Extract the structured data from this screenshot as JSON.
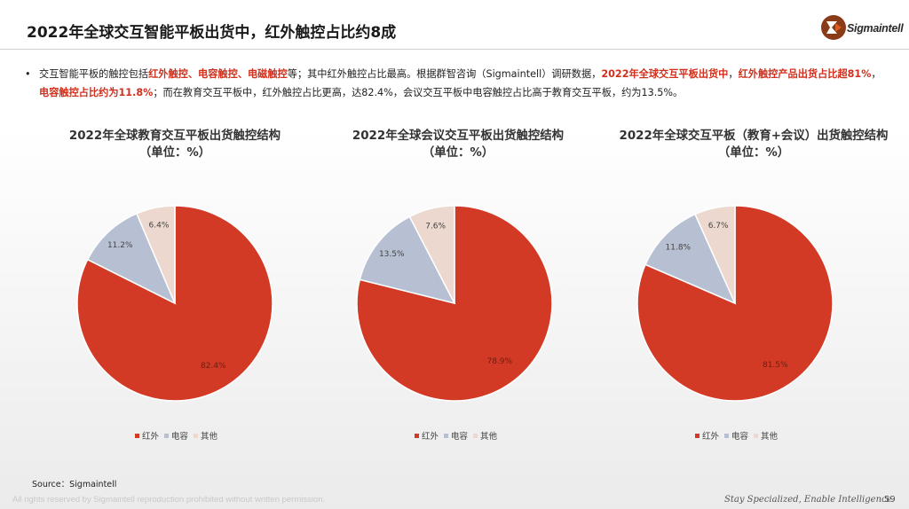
{
  "slide": {
    "title": "2022年全球交互智能平板出货中，红外触控占比约8成",
    "logo_text": "Sigmaintell",
    "bullet": {
      "marker": "•",
      "segments": [
        {
          "text": "交互智能平板的触控包括",
          "highlight": false
        },
        {
          "text": "红外触控、电容触控、电磁触控",
          "highlight": true
        },
        {
          "text": "等；其中红外触控占比最高。根据群智咨询（Sigmaintell）调研数据，",
          "highlight": false
        },
        {
          "text": "2022年全球交互平板出货中",
          "highlight": true
        },
        {
          "text": "，",
          "highlight": false
        },
        {
          "text": "红外触控产品出货占比超81%",
          "highlight": true
        },
        {
          "text": "，",
          "highlight": false
        },
        {
          "text": "电容触控占比约为11.8%",
          "highlight": true
        },
        {
          "text": "；而在教育交互平板中，红外触控占比更高，达82.4%，会议交互平板中电容触控占比高于教育交互平板，约为13.5%。",
          "highlight": false
        }
      ]
    },
    "source": "Source：Sigmaintell",
    "footer_left": "All rights reserved by Sigmaintell reproduction prohibited without written permission.",
    "footer_right": "Stay Specialized, Enable Intelligence",
    "page_number": "59"
  },
  "colors": {
    "accent_red": "#d0301d",
    "series": [
      "#d23a25",
      "#b7c0d3",
      "#ecd8cf"
    ]
  },
  "chart_data": [
    {
      "type": "pie",
      "title": "2022年全球教育交互平板出货触控结构",
      "subtitle": "（单位：%）",
      "categories": [
        "红外",
        "电容",
        "其他"
      ],
      "values": [
        82.4,
        11.2,
        6.4
      ],
      "labels": [
        "82.4%",
        "11.2%",
        "6.4%"
      ],
      "legend_position": "bottom"
    },
    {
      "type": "pie",
      "title": "2022年全球会议交互平板出货触控结构",
      "subtitle": "（单位：%）",
      "categories": [
        "红外",
        "电容",
        "其他"
      ],
      "values": [
        78.9,
        13.5,
        7.6
      ],
      "labels": [
        "78.9%",
        "13.5%",
        "7.6%"
      ],
      "legend_position": "bottom"
    },
    {
      "type": "pie",
      "title": "2022年全球交互平板（教育+会议）出货触控结构",
      "subtitle": "（单位：%）",
      "categories": [
        "红外",
        "电容",
        "其他"
      ],
      "values": [
        81.5,
        11.8,
        6.7
      ],
      "labels": [
        "81.5%",
        "11.8%",
        "6.7%"
      ],
      "legend_position": "bottom"
    }
  ]
}
